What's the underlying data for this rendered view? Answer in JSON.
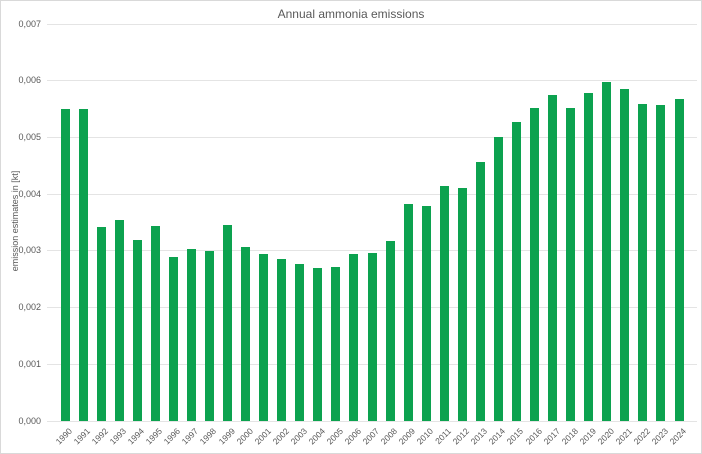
{
  "colors": {
    "bar": "#0ca24f",
    "grid": "#e4e4e4",
    "text": "#595959",
    "frame_border": "#d9d9d9",
    "background": "#ffffff"
  },
  "chart_data": {
    "type": "bar",
    "title": "Annual ammonia emissions",
    "xlabel": "",
    "ylabel": "emission estimates in [kt]",
    "ylim": [
      0,
      0.007
    ],
    "ytick_step": 0.001,
    "ytick_labels": [
      "0,000",
      "0,001",
      "0,002",
      "0,003",
      "0,004",
      "0,005",
      "0,006",
      "0,007"
    ],
    "decimal_separator": ",",
    "grid": true,
    "legend": false,
    "categories": [
      "1990",
      "1991",
      "1992",
      "1993",
      "1994",
      "1995",
      "1996",
      "1997",
      "1998",
      "1999",
      "2000",
      "2001",
      "2002",
      "2003",
      "2004",
      "2005",
      "2006",
      "2007",
      "2008",
      "2009",
      "2010",
      "2011",
      "2012",
      "2013",
      "2014",
      "2015",
      "2016",
      "2017",
      "2018",
      "2019",
      "2020",
      "2021",
      "2022",
      "2023",
      "2024"
    ],
    "values": [
      0.00551,
      0.00551,
      0.00343,
      0.00354,
      0.0032,
      0.00344,
      0.00289,
      0.00303,
      0.003,
      0.00346,
      0.00307,
      0.00294,
      0.00286,
      0.00277,
      0.00269,
      0.00271,
      0.00295,
      0.00297,
      0.00318,
      0.00382,
      0.00379,
      0.00415,
      0.00411,
      0.00457,
      0.005,
      0.00528,
      0.00552,
      0.00575,
      0.00552,
      0.00579,
      0.00598,
      0.00586,
      0.00559,
      0.00558,
      0.00568
    ]
  }
}
